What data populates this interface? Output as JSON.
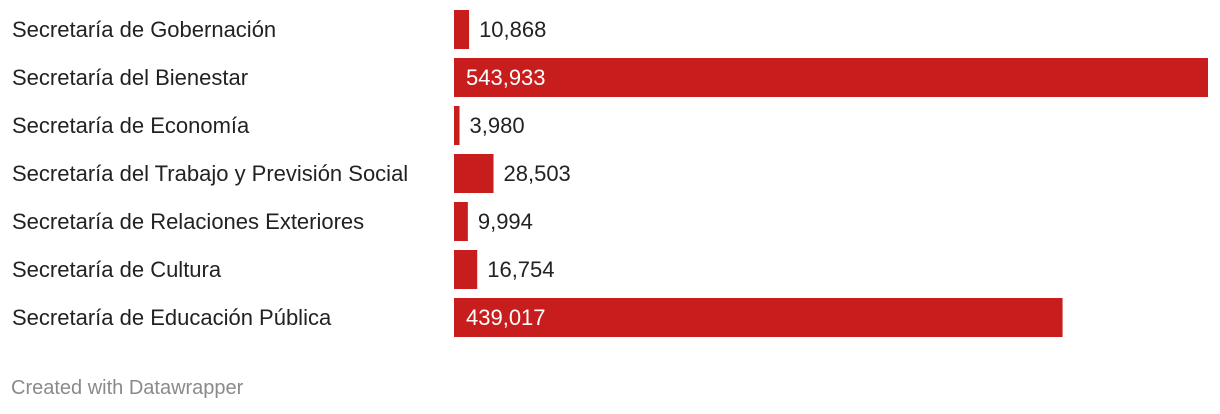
{
  "chart_data": {
    "type": "bar",
    "orientation": "horizontal",
    "categories": [
      "Secretaría de Gobernación",
      "Secretaría del Bienestar",
      "Secretaría de Economía",
      "Secretaría del Trabajo y Previsión Social",
      "Secretaría de Relaciones Exteriores",
      "Secretaría de Cultura",
      "Secretaría de Educación Pública"
    ],
    "values": [
      10868,
      543933,
      3980,
      28503,
      9994,
      16754,
      439017
    ],
    "value_labels": [
      "10,868",
      "543,933",
      "3,980",
      "28,503",
      "9,994",
      "16,754",
      "439,017"
    ],
    "xlim": [
      0,
      543933
    ],
    "grid": false,
    "legend": "none",
    "colors": {
      "bar": "#c71e1d",
      "label_inside": "#ffffff",
      "label_outside": "#222222"
    }
  },
  "footer": {
    "credit": "Created with Datawrapper"
  }
}
